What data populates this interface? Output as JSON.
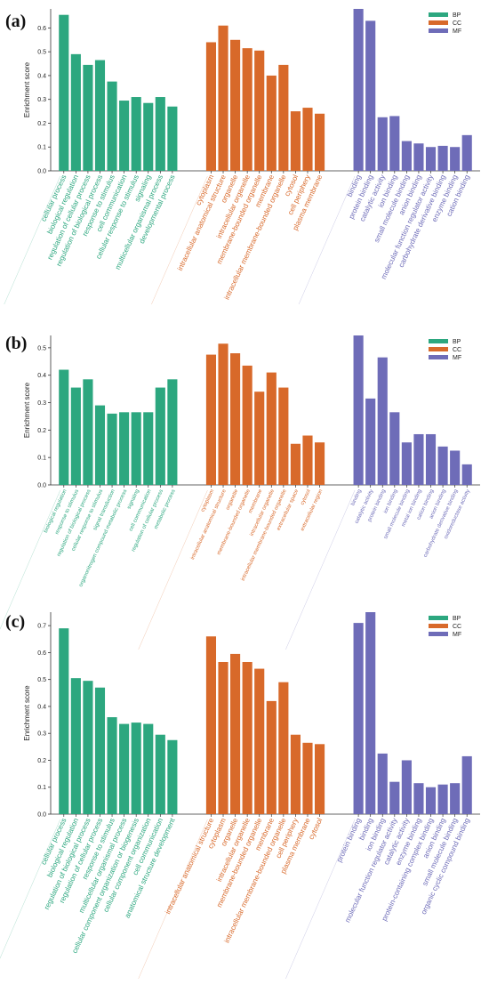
{
  "colors": {
    "BP": "#2ca77f",
    "CC": "#d8692a",
    "MF": "#6e6cb8"
  },
  "chart_data": [
    {
      "type": "bar",
      "panel": "(a)",
      "ylabel": "Enrichment score",
      "ylim": [
        0,
        0.68
      ],
      "yticks": [
        "0.0",
        "0.1",
        "0.2",
        "0.3",
        "0.4",
        "0.5",
        "0.6"
      ],
      "legend": [
        "BP",
        "CC",
        "MF"
      ],
      "legend_position": "top-right",
      "grid": false,
      "groups": [
        {
          "name": "BP",
          "categories": [
            "cellular process",
            "biological regulation",
            "regulation of cellular process",
            "regulation of biological process",
            "response to stimulus",
            "cell communication",
            "cellular response to stimulus",
            "signaling",
            "multicellular organismal process",
            "developmental process"
          ],
          "values": [
            0.655,
            0.49,
            0.445,
            0.465,
            0.375,
            0.295,
            0.31,
            0.285,
            0.31,
            0.27
          ]
        },
        {
          "name": "CC",
          "categories": [
            "cytoplasm",
            "intracellular anatomical structure",
            "organelle",
            "intracellular organelle",
            "membrane-bounded organelle",
            "membrane",
            "intracellular membrane-bounded organelle",
            "cytosol",
            "cell periphery",
            "plasma membrane"
          ],
          "values": [
            0.54,
            0.61,
            0.55,
            0.515,
            0.505,
            0.4,
            0.445,
            0.25,
            0.265,
            0.24
          ]
        },
        {
          "name": "MF",
          "categories": [
            "binding",
            "protein binding",
            "catalytic activity",
            "ion binding",
            "small molecule binding",
            "anion binding",
            "molecular function regulator activity",
            "carbohydrate derivative binding",
            "enzyme binding",
            "cation binding"
          ],
          "values": [
            0.68,
            0.63,
            0.225,
            0.23,
            0.125,
            0.115,
            0.1,
            0.105,
            0.1,
            0.15
          ]
        }
      ]
    },
    {
      "type": "bar",
      "panel": "(b)",
      "ylabel": "Enrichment score",
      "ylim": [
        0,
        0.545
      ],
      "yticks": [
        "0.0",
        "0.1",
        "0.2",
        "0.3",
        "0.4",
        "0.5"
      ],
      "legend": [
        "BP",
        "CC",
        "MF"
      ],
      "legend_position": "top-right",
      "grid": false,
      "groups": [
        {
          "name": "BP",
          "categories": [
            "biological regulation",
            "response to stimulus",
            "regulation of biological process",
            "cellular response to stimulus",
            "signal transduction",
            "organonitrogen compound metabolic process",
            "signaling",
            "cell communication",
            "regulation of cellular process",
            "metabolic process"
          ],
          "values": [
            0.42,
            0.355,
            0.385,
            0.29,
            0.26,
            0.265,
            0.265,
            0.265,
            0.355,
            0.385
          ]
        },
        {
          "name": "CC",
          "categories": [
            "cytoplasm",
            "intracellular anatomical structure",
            "organelle",
            "membrane-bounded organelle",
            "membrane",
            "intracellular organelle",
            "intracellular membrane-bounded organelle",
            "extracellular space",
            "cytosol",
            "extracellular region"
          ],
          "values": [
            0.475,
            0.515,
            0.48,
            0.435,
            0.34,
            0.41,
            0.355,
            0.15,
            0.18,
            0.155
          ]
        },
        {
          "name": "MF",
          "categories": [
            "binding",
            "catalytic activity",
            "protein binding",
            "ion binding",
            "small molecule binding",
            "metal ion binding",
            "cation binding",
            "anion binding",
            "carbohydrate derivative binding",
            "oxidoreductase activity"
          ],
          "values": [
            0.545,
            0.315,
            0.465,
            0.265,
            0.155,
            0.185,
            0.185,
            0.14,
            0.125,
            0.075
          ]
        }
      ]
    },
    {
      "type": "bar",
      "panel": "(c)",
      "ylabel": "Enrichment score",
      "ylim": [
        0,
        0.75
      ],
      "yticks": [
        "0.0",
        "0.1",
        "0.2",
        "0.3",
        "0.4",
        "0.5",
        "0.6",
        "0.7"
      ],
      "legend": [
        "BP",
        "CC",
        "MF"
      ],
      "legend_position": "top-right",
      "grid": false,
      "groups": [
        {
          "name": "BP",
          "categories": [
            "cellular process",
            "biological regulation",
            "regulation of biological process",
            "regulation of cellular process",
            "response to stimulus",
            "multicellular organismal process",
            "cellular component organization or biogenesis",
            "cellular component organization",
            "cell communication",
            "anatomical structure development"
          ],
          "values": [
            0.69,
            0.505,
            0.495,
            0.47,
            0.36,
            0.335,
            0.34,
            0.335,
            0.295,
            0.275
          ]
        },
        {
          "name": "CC",
          "categories": [
            "intracellular anatomical structure",
            "cytoplasm",
            "organelle",
            "intracellular organelle",
            "membrane-bounded organelle",
            "membrane",
            "intracellular membrane-bounded organelle",
            "cell periphery",
            "plasma membrane",
            "cytosol"
          ],
          "values": [
            0.66,
            0.565,
            0.595,
            0.565,
            0.54,
            0.42,
            0.49,
            0.295,
            0.265,
            0.26
          ]
        },
        {
          "name": "MF",
          "categories": [
            "protein binding",
            "binding",
            "ion binding",
            "molecular function regulator activity",
            "catalytic activity",
            "enzyme binding",
            "protein-containing complex binding",
            "anion binding",
            "small molecule binding",
            "organic cyclic compound binding"
          ],
          "values": [
            0.71,
            0.75,
            0.225,
            0.12,
            0.2,
            0.115,
            0.1,
            0.11,
            0.115,
            0.215
          ]
        }
      ]
    }
  ]
}
